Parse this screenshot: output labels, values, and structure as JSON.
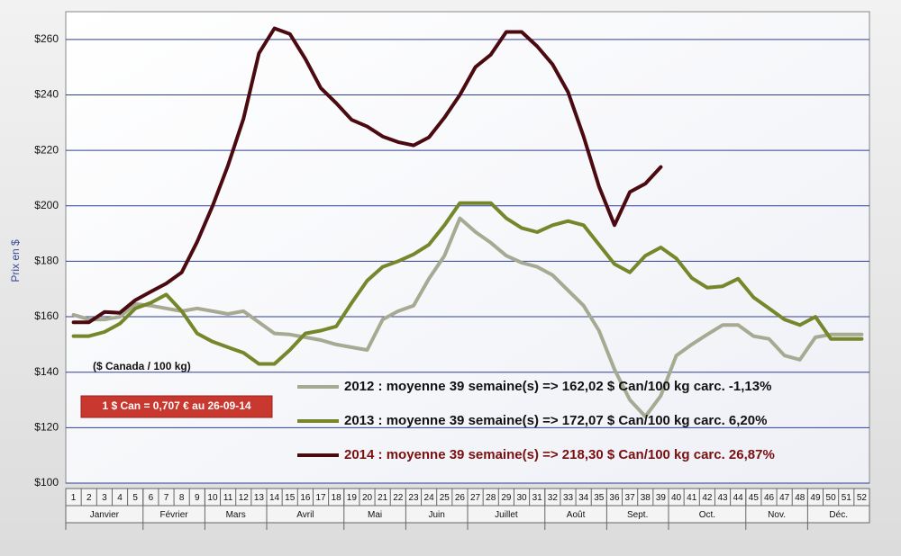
{
  "chart_data": {
    "type": "line",
    "y_label": "Prix en $",
    "unit_note": "($ Canada / 100 kg)",
    "exchange_note": "1 $ Can = 0,707 €  au 26-09-14",
    "categories": [
      "1",
      "2",
      "3",
      "4",
      "5",
      "6",
      "7",
      "8",
      "9",
      "10",
      "11",
      "12",
      "13",
      "14",
      "15",
      "16",
      "17",
      "18",
      "19",
      "20",
      "21",
      "22",
      "23",
      "24",
      "25",
      "26",
      "27",
      "28",
      "29",
      "30",
      "31",
      "32",
      "33",
      "34",
      "35",
      "36",
      "37",
      "38",
      "39",
      "40",
      "41",
      "42",
      "43",
      "44",
      "45",
      "46",
      "47",
      "48",
      "49",
      "50",
      "51",
      "52"
    ],
    "month_groups": [
      {
        "label": "Janvier",
        "weeks": 5
      },
      {
        "label": "Février",
        "weeks": 4
      },
      {
        "label": "Mars",
        "weeks": 4
      },
      {
        "label": "Avril",
        "weeks": 5
      },
      {
        "label": "Mai",
        "weeks": 4
      },
      {
        "label": "Juin",
        "weeks": 4
      },
      {
        "label": "Juillet",
        "weeks": 5
      },
      {
        "label": "Août",
        "weeks": 4
      },
      {
        "label": "Sept.",
        "weeks": 4
      },
      {
        "label": "Oct.",
        "weeks": 5
      },
      {
        "label": "Nov.",
        "weeks": 4
      },
      {
        "label": "Déc.",
        "weeks": 4
      }
    ],
    "ylim": [
      100,
      270
    ],
    "yticks": [
      {
        "value": 100,
        "label": "$100"
      },
      {
        "value": 120,
        "label": "$120"
      },
      {
        "value": 140,
        "label": "$140"
      },
      {
        "value": 160,
        "label": "$160"
      },
      {
        "value": 180,
        "label": "$180"
      },
      {
        "value": 200,
        "label": "$200"
      },
      {
        "value": 220,
        "label": "$220"
      },
      {
        "value": 240,
        "label": "$240"
      },
      {
        "value": 260,
        "label": "$260"
      }
    ],
    "grid": true,
    "series": [
      {
        "name": "2012 : moyenne 39 semaine(s) => 162,02 $ Can/100 kg carc. -1,13%",
        "color": "#a7aa92",
        "label_color": "#111111",
        "values": [
          160.7,
          159,
          159,
          160,
          164.6,
          164,
          163,
          162,
          163,
          162,
          161,
          162,
          158,
          154,
          153.6,
          152.6,
          151.6,
          150,
          149,
          148,
          159,
          162,
          164,
          173.7,
          182,
          195.5,
          190.6,
          186.7,
          182,
          179.5,
          178,
          175,
          169.5,
          164,
          155,
          141,
          130,
          124,
          131.5,
          146,
          150,
          153.6,
          157,
          157,
          153,
          152,
          146,
          144.5,
          152.6,
          153.6,
          153.6,
          153.6
        ]
      },
      {
        "name": "2013 : moyenne 39 semaine(s) => 172,07 $ Can/100 kg carc. 6,20%",
        "color": "#76862a",
        "label_color": "#111111",
        "values": [
          153,
          153,
          154.5,
          157.5,
          163,
          165,
          168,
          162,
          154,
          151,
          149,
          147,
          143,
          143,
          148,
          154,
          155,
          156.5,
          165,
          173,
          178,
          180,
          182.5,
          186,
          193,
          201,
          201,
          201,
          195.5,
          192,
          190.5,
          193,
          194.5,
          193,
          186,
          179,
          176,
          182,
          185,
          181,
          174,
          170.5,
          171,
          173.7,
          167,
          163,
          159,
          157,
          160,
          152,
          152,
          152
        ]
      },
      {
        "name": "2014 : moyenne 39 semaine(s) => 218,30 $ Can/100 kg carc. 26,87%",
        "color": "#4a0a10",
        "label_color": "#7a1010",
        "values": [
          158,
          158,
          161.7,
          161.4,
          166,
          169,
          172,
          176,
          187,
          200,
          214.6,
          231.5,
          255,
          264,
          262,
          253,
          242.5,
          237,
          231,
          228.6,
          225,
          223,
          221.8,
          224.7,
          231.8,
          240,
          250,
          254.5,
          262.7,
          262.7,
          257.5,
          251,
          241,
          225,
          207,
          193,
          205,
          208,
          214,
          null,
          null,
          null,
          null,
          null,
          null,
          null,
          null,
          null,
          null,
          null,
          null,
          null
        ]
      }
    ]
  }
}
